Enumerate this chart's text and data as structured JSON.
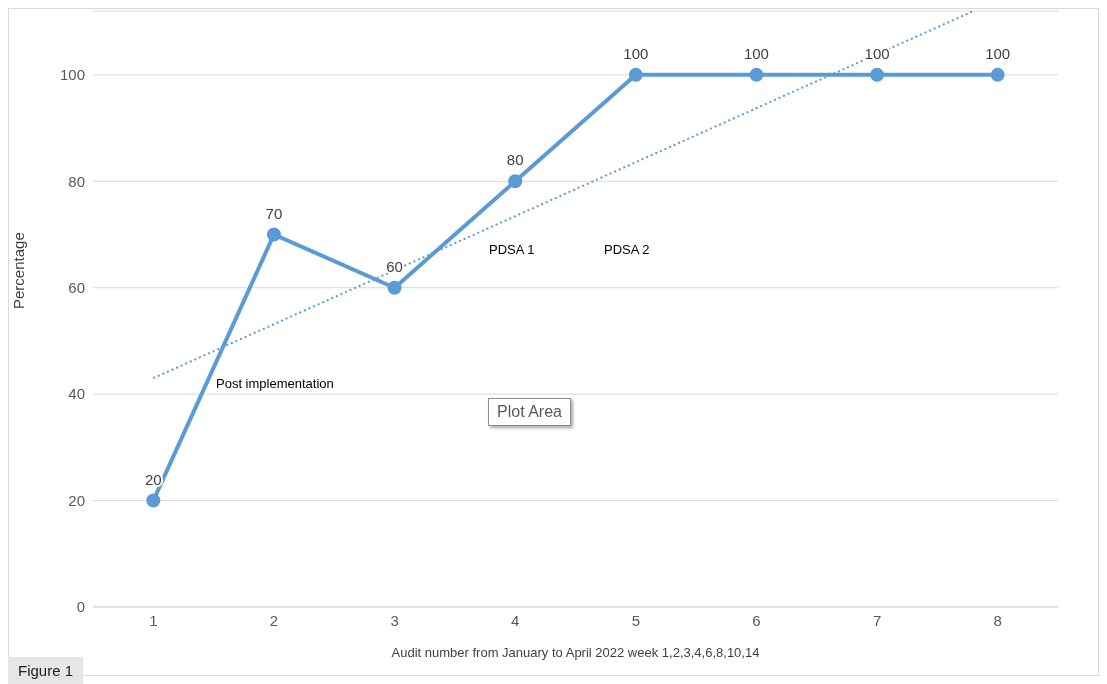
{
  "chart_data": {
    "type": "line",
    "xlabel": "Audit number from January to April 2022 week 1,2,3,4,6,8,10,14",
    "ylabel": "Percentage",
    "x": [
      1,
      2,
      3,
      4,
      5,
      6,
      7,
      8
    ],
    "series": [
      {
        "color": "#5b9bd5",
        "values": [
          20,
          70,
          60,
          80,
          100,
          100,
          100,
          100
        ],
        "marker": "circle",
        "line_style": "solid",
        "data_labels": true
      },
      {
        "type": "line",
        "color": "#5b9bd5",
        "x": [
          1,
          7.8
        ],
        "values": [
          43,
          112
        ],
        "marker": "none",
        "line_style": "dotted"
      }
    ],
    "xlim": [
      0.5,
      8.5
    ],
    "xticks": [
      1,
      2,
      3,
      4,
      5,
      6,
      7,
      8
    ],
    "ylim": [
      0,
      112
    ],
    "yticks": [
      0,
      20,
      40,
      60,
      80,
      100
    ],
    "grid": "y",
    "annotations": [
      "Post implementation",
      "PDSA 1",
      "PDSA 2",
      "Plot Area",
      "Figure 1"
    ]
  }
}
